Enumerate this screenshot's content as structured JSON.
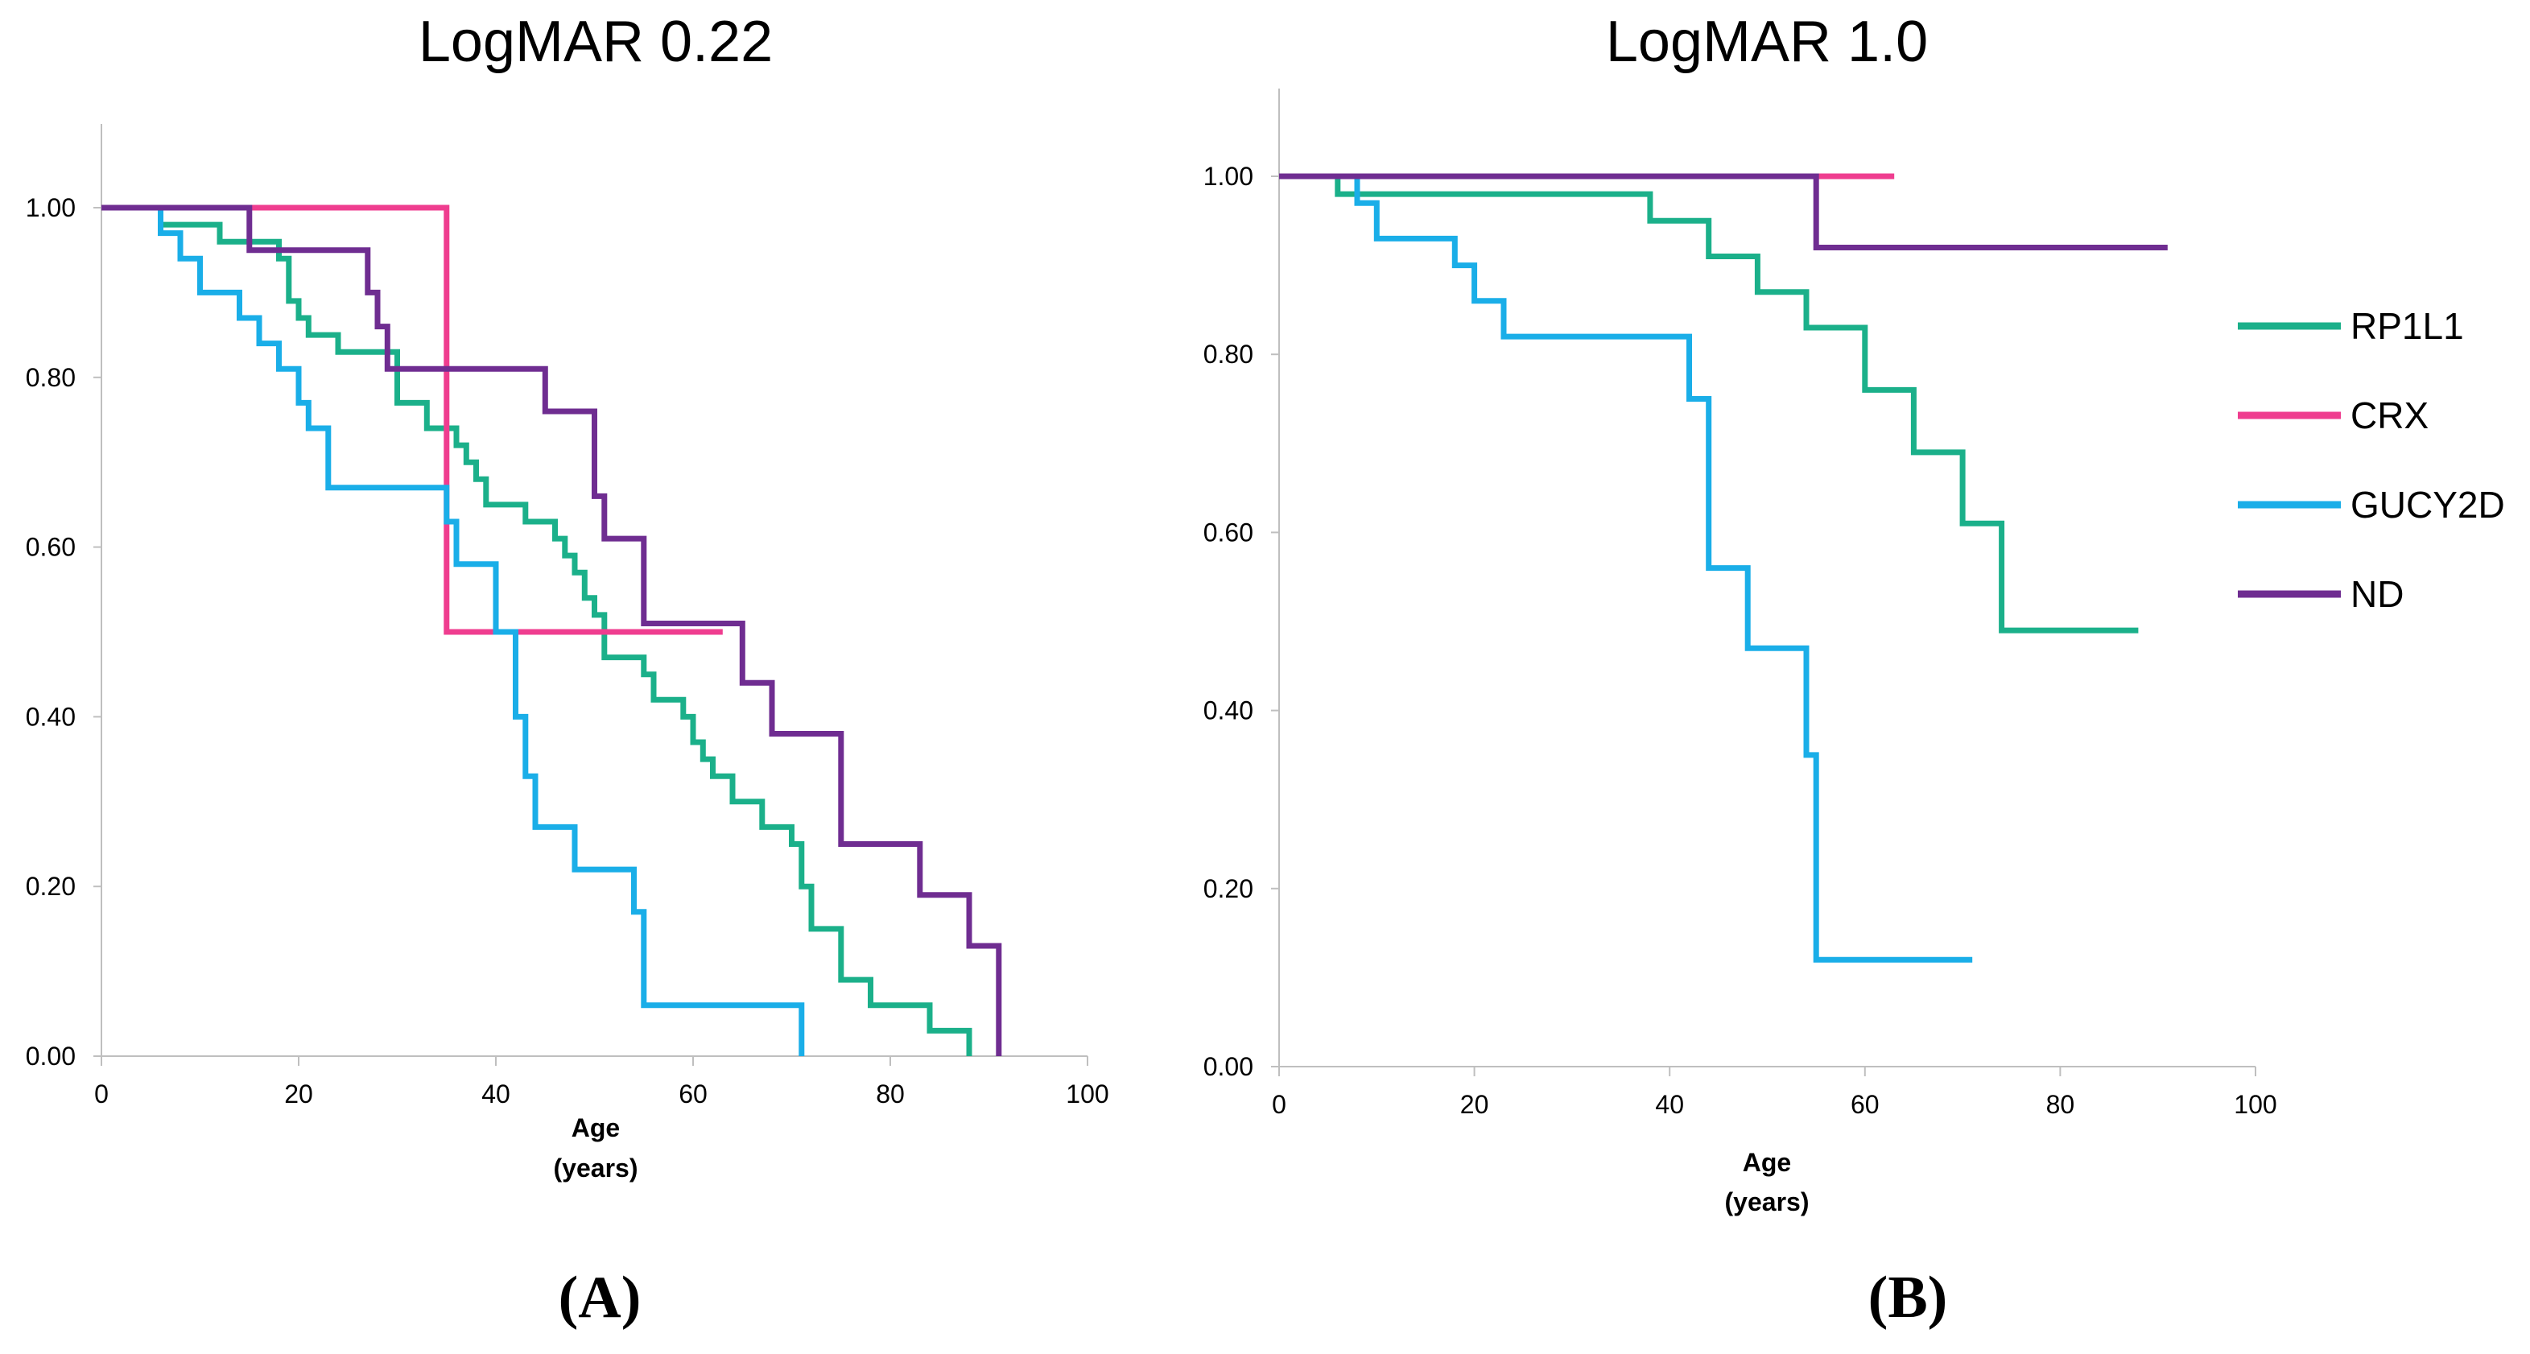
{
  "chart_data": [
    {
      "type": "line",
      "subtype": "step",
      "title": "LogMAR 0.22",
      "panel_label": "(A)",
      "xlabel": "Age",
      "xlabel_unit": "(years)",
      "ylabel": "",
      "xlim": [
        0,
        100
      ],
      "ylim": [
        0,
        1.1
      ],
      "x_ticks": [
        0,
        20,
        40,
        60,
        80,
        100
      ],
      "x_tick_labels": [
        "0",
        "20",
        "40",
        "60",
        "80",
        "100"
      ],
      "y_ticks": [
        0,
        0.2,
        0.4,
        0.6,
        0.8,
        1.0
      ],
      "y_tick_labels": [
        "0.00",
        "0.20",
        "0.40",
        "0.60",
        "0.80",
        "1.00"
      ],
      "grid": false,
      "series": [
        {
          "name": "RP1L1",
          "color": "#1bb08a",
          "steps": [
            [
              0,
              1.0
            ],
            [
              6,
              0.98
            ],
            [
              12,
              0.96
            ],
            [
              18,
              0.94
            ],
            [
              19,
              0.89
            ],
            [
              20,
              0.87
            ],
            [
              21,
              0.85
            ],
            [
              24,
              0.83
            ],
            [
              30,
              0.77
            ],
            [
              33,
              0.74
            ],
            [
              36,
              0.72
            ],
            [
              37,
              0.7
            ],
            [
              38,
              0.68
            ],
            [
              39,
              0.65
            ],
            [
              43,
              0.63
            ],
            [
              46,
              0.61
            ],
            [
              47,
              0.59
            ],
            [
              48,
              0.57
            ],
            [
              49,
              0.54
            ],
            [
              50,
              0.52
            ],
            [
              51,
              0.47
            ],
            [
              55,
              0.45
            ],
            [
              56,
              0.42
            ],
            [
              59,
              0.4
            ],
            [
              60,
              0.37
            ],
            [
              61,
              0.35
            ],
            [
              62,
              0.33
            ],
            [
              64,
              0.3
            ],
            [
              67,
              0.27
            ],
            [
              70,
              0.25
            ],
            [
              71,
              0.2
            ],
            [
              72,
              0.15
            ],
            [
              75,
              0.09
            ],
            [
              78,
              0.06
            ],
            [
              84,
              0.03
            ],
            [
              88,
              0.0
            ]
          ],
          "end": 88
        },
        {
          "name": "CRX",
          "color": "#ef3d8f",
          "steps": [
            [
              0,
              1.0
            ],
            [
              35,
              0.5
            ]
          ],
          "end": 63
        },
        {
          "name": "GUCY2D",
          "color": "#1aaee8",
          "steps": [
            [
              0,
              1.0
            ],
            [
              6,
              0.97
            ],
            [
              8,
              0.94
            ],
            [
              10,
              0.9
            ],
            [
              14,
              0.87
            ],
            [
              16,
              0.84
            ],
            [
              18,
              0.81
            ],
            [
              20,
              0.77
            ],
            [
              21,
              0.74
            ],
            [
              23,
              0.67
            ],
            [
              35,
              0.63
            ],
            [
              36,
              0.58
            ],
            [
              40,
              0.5
            ],
            [
              42,
              0.4
            ],
            [
              43,
              0.33
            ],
            [
              44,
              0.27
            ],
            [
              48,
              0.22
            ],
            [
              54,
              0.17
            ],
            [
              55,
              0.06
            ],
            [
              71,
              0.0
            ]
          ],
          "end": 71
        },
        {
          "name": "ND",
          "color": "#6f2d91",
          "steps": [
            [
              0,
              1.0
            ],
            [
              15,
              0.95
            ],
            [
              27,
              0.9
            ],
            [
              28,
              0.86
            ],
            [
              29,
              0.81
            ],
            [
              45,
              0.76
            ],
            [
              50,
              0.66
            ],
            [
              51,
              0.61
            ],
            [
              55,
              0.51
            ],
            [
              65,
              0.44
            ],
            [
              68,
              0.38
            ],
            [
              75,
              0.25
            ],
            [
              83,
              0.19
            ],
            [
              88,
              0.13
            ],
            [
              91,
              0.0
            ]
          ],
          "end": 91
        }
      ]
    },
    {
      "type": "line",
      "subtype": "step",
      "title": "LogMAR 1.0",
      "panel_label": "(B)",
      "xlabel": "Age",
      "xlabel_unit": "(years)",
      "ylabel": "",
      "xlim": [
        0,
        100
      ],
      "ylim": [
        0,
        1.1
      ],
      "x_ticks": [
        0,
        20,
        40,
        60,
        80,
        100
      ],
      "x_tick_labels": [
        "0",
        "20",
        "40",
        "60",
        "80",
        "100"
      ],
      "y_ticks": [
        0,
        0.2,
        0.4,
        0.6,
        0.8,
        1.0
      ],
      "y_tick_labels": [
        "0.00",
        "0.20",
        "0.40",
        "0.60",
        "0.80",
        "1.00"
      ],
      "grid": false,
      "legend_position": "right",
      "series": [
        {
          "name": "RP1L1",
          "color": "#1bb08a",
          "steps": [
            [
              0,
              1.0
            ],
            [
              6,
              0.98
            ],
            [
              38,
              0.95
            ],
            [
              44,
              0.91
            ],
            [
              49,
              0.87
            ],
            [
              54,
              0.83
            ],
            [
              60,
              0.76
            ],
            [
              65,
              0.69
            ],
            [
              70,
              0.61
            ],
            [
              74,
              0.49
            ]
          ],
          "end": 88
        },
        {
          "name": "CRX",
          "color": "#ef3d8f",
          "steps": [
            [
              0,
              1.0
            ]
          ],
          "end": 63
        },
        {
          "name": "GUCY2D",
          "color": "#1aaee8",
          "steps": [
            [
              0,
              1.0
            ],
            [
              8,
              0.97
            ],
            [
              10,
              0.93
            ],
            [
              18,
              0.9
            ],
            [
              20,
              0.86
            ],
            [
              23,
              0.82
            ],
            [
              42,
              0.75
            ],
            [
              44,
              0.56
            ],
            [
              48,
              0.47
            ],
            [
              54,
              0.35
            ],
            [
              55,
              0.12
            ]
          ],
          "end": 71
        },
        {
          "name": "ND",
          "color": "#6f2d91",
          "steps": [
            [
              0,
              1.0
            ],
            [
              55,
              0.92
            ]
          ],
          "end": 91
        }
      ]
    }
  ]
}
